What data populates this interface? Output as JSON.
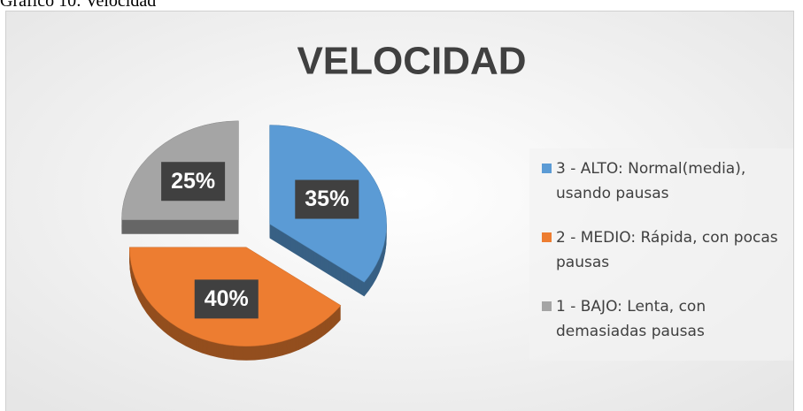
{
  "caption": "Gráfico 10: Velocidad",
  "chart_data": {
    "type": "pie",
    "title": "VELOCIDAD",
    "categories": [
      "3 - ALTO:  Normal(media), usando pausas",
      "2 - MEDIO: Rápida, con pocas pausas",
      "1 - BAJO:  Lenta, con demasiadas pausas"
    ],
    "values": [
      35,
      40,
      25
    ],
    "value_labels": [
      "35%",
      "40%",
      "25%"
    ],
    "colors": [
      "#5b9bd5",
      "#ed7d31",
      "#a5a5a5"
    ],
    "legend": "right"
  }
}
